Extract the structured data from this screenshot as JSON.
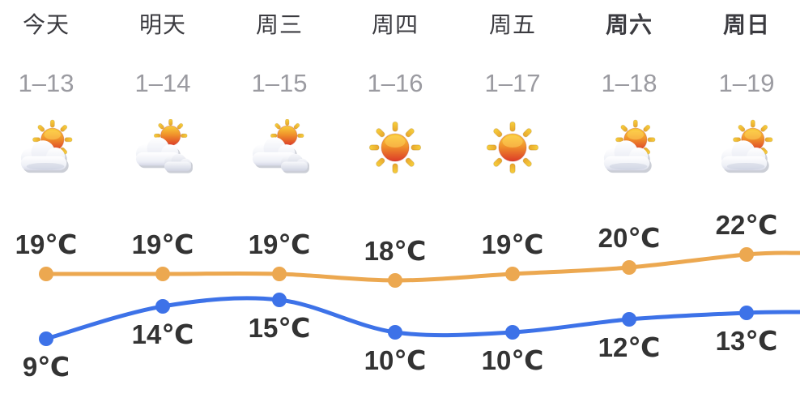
{
  "forecast": {
    "days": [
      {
        "name": "今天",
        "date": "1–13",
        "icon": "partly-cloudy",
        "emphasis": false
      },
      {
        "name": "明天",
        "date": "1–14",
        "icon": "cloudy",
        "emphasis": false
      },
      {
        "name": "周三",
        "date": "1–15",
        "icon": "cloudy",
        "emphasis": false
      },
      {
        "name": "周四",
        "date": "1–16",
        "icon": "sunny",
        "emphasis": false
      },
      {
        "name": "周五",
        "date": "1–17",
        "icon": "sunny",
        "emphasis": false
      },
      {
        "name": "周六",
        "date": "1–18",
        "icon": "partly-cloudy",
        "emphasis": true
      },
      {
        "name": "周日",
        "date": "1–19",
        "icon": "partly-cloudy",
        "emphasis": true
      }
    ]
  },
  "chart_data": {
    "type": "line",
    "categories": [
      "今天",
      "明天",
      "周三",
      "周四",
      "周五",
      "周六",
      "周日"
    ],
    "unit": "℃",
    "series": [
      {
        "name": "high",
        "values": [
          19,
          19,
          19,
          18,
          19,
          20,
          22
        ],
        "color": "#ECA850",
        "label_position": "above"
      },
      {
        "name": "low",
        "values": [
          9,
          14,
          15,
          10,
          10,
          12,
          13
        ],
        "color": "#3D72E8",
        "label_position": "below"
      }
    ],
    "xlabel": "",
    "ylabel": "",
    "ylim": [
      0,
      30
    ],
    "grid": false,
    "legend": false
  },
  "colors": {
    "background": "#ffffff",
    "day_text": "#3b3b40",
    "date_text": "#9b9ba1",
    "temp_label_text": "#333333",
    "high_line": "#ECA850",
    "low_line": "#3D72E8"
  }
}
